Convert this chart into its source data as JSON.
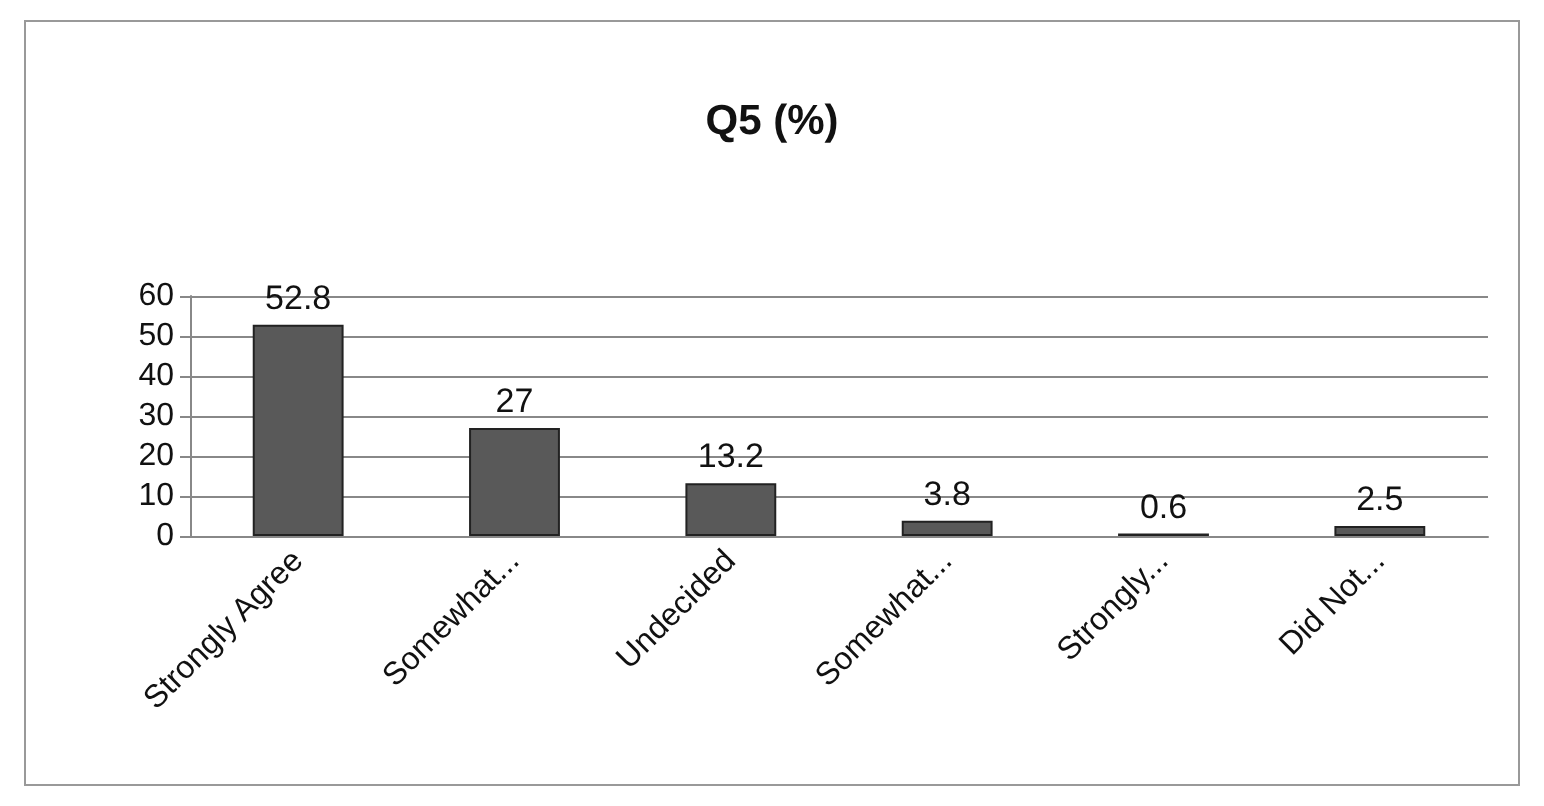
{
  "chart_data": {
    "type": "bar",
    "title": "Q5 (%)",
    "categories": [
      "Strongly Agree",
      "Somewhat...",
      "Undecided",
      "Somewhat...",
      "Strongly...",
      "Did Not..."
    ],
    "values": [
      52.8,
      27,
      13.2,
      3.8,
      0.6,
      2.5
    ],
    "color": "#595959",
    "ylim": [
      0,
      60
    ],
    "yticks": [
      0,
      10,
      20,
      30,
      40,
      50,
      60
    ],
    "grid": "y",
    "data_labels": true
  }
}
